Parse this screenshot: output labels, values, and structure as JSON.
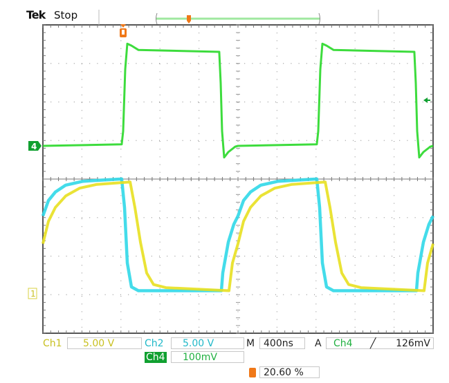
{
  "header": {
    "brand": "Tek",
    "status": "Stop"
  },
  "colors": {
    "ch1": "#e8e020",
    "ch2": "#30d8e8",
    "ch4": "#28d828",
    "ch4_badge": "#10a030",
    "trigger": "#f07818",
    "grid": "#9a9a9a"
  },
  "markers": {
    "ch4": "4",
    "ch1": "1",
    "trigger_icon": "T"
  },
  "readouts": {
    "ch1_label": "Ch1",
    "ch1_scale": "5.00 V",
    "ch2_label": "Ch2",
    "ch2_scale": "5.00 V",
    "ch4_label": "Ch4",
    "ch4_scale": "100mV",
    "timebase_label": "M",
    "timebase": "400ns",
    "trigger_label": "A",
    "trigger_source": "Ch4",
    "trigger_slope_icon": "rising-edge",
    "trigger_level": "126mV",
    "trigger_position": "20.60 %"
  },
  "chart_data": {
    "type": "line",
    "title": "",
    "x_units": "ns",
    "xlim": [
      0,
      4000
    ],
    "x_divisions": 10,
    "y_divisions": 8,
    "grid": true,
    "period_ns": 2000,
    "series": [
      {
        "channel": "Ch1",
        "units": "V",
        "color": "#e8e020",
        "points": [
          [
            0,
            6.5
          ],
          [
            57,
            9.4
          ],
          [
            128,
            11.2
          ],
          [
            234,
            12.7
          ],
          [
            376,
            13.7
          ],
          [
            553,
            14.2
          ],
          [
            894,
            14.5
          ],
          [
            943,
            11.2
          ],
          [
            1000,
            6.7
          ],
          [
            1064,
            2.7
          ],
          [
            1135,
            1.2
          ],
          [
            1262,
            0.8
          ],
          [
            1908,
            0.4
          ],
          [
            1943,
            4.0
          ],
          [
            2000,
            6.5
          ]
        ]
      },
      {
        "channel": "Ch2",
        "units": "V",
        "color": "#30d8e8",
        "points": [
          [
            0,
            10.1
          ],
          [
            57,
            12.1
          ],
          [
            128,
            13.2
          ],
          [
            234,
            14.1
          ],
          [
            411,
            14.6
          ],
          [
            808,
            14.9
          ],
          [
            837,
            11.2
          ],
          [
            865,
            4.0
          ],
          [
            908,
            0.9
          ],
          [
            979,
            0.4
          ],
          [
            1830,
            0.4
          ],
          [
            1844,
            2.7
          ],
          [
            1901,
            6.7
          ],
          [
            1957,
            9.0
          ],
          [
            2000,
            10.1
          ]
        ]
      },
      {
        "channel": "Ch4",
        "units": "mV",
        "color": "#28d828",
        "points": [
          [
            0,
            0
          ],
          [
            808,
            4
          ],
          [
            823,
            38
          ],
          [
            844,
            199
          ],
          [
            865,
            265
          ],
          [
            908,
            260
          ],
          [
            979,
            249
          ],
          [
            1808,
            244
          ],
          [
            1823,
            163
          ],
          [
            1837,
            38
          ],
          [
            1858,
            -30
          ],
          [
            1901,
            -16
          ],
          [
            1972,
            -2
          ],
          [
            2000,
            0
          ]
        ]
      }
    ]
  }
}
